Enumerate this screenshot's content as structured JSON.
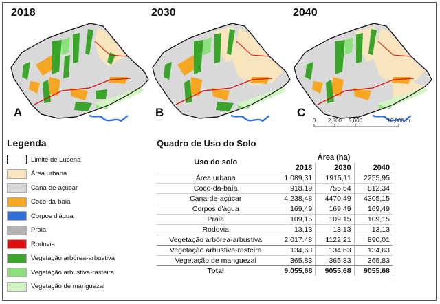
{
  "maps": [
    {
      "year": "2018",
      "letter": "A"
    },
    {
      "year": "2030",
      "letter": "B"
    },
    {
      "year": "2040",
      "letter": "C"
    }
  ],
  "scale_bar": {
    "ticks": [
      "0",
      "2,500",
      "5,000",
      "10,000 m"
    ]
  },
  "legend": {
    "title": "Legenda",
    "items": [
      {
        "label": "Limite de Lucena",
        "color": "#ffffff"
      },
      {
        "label": "Área urbana",
        "color": "#f8e5bd"
      },
      {
        "label": "Cana-de-açúcar",
        "color": "#d9d9d9"
      },
      {
        "label": "Coco-da-baía",
        "color": "#f5a623"
      },
      {
        "label": "Corpos d'água",
        "color": "#2f6fd6"
      },
      {
        "label": "Praia",
        "color": "#b3b3b3"
      },
      {
        "label": "Rodovia",
        "color": "#e01010"
      },
      {
        "label": "Vegetação arbórea-arbustiva",
        "color": "#3aa52a"
      },
      {
        "label": "Vegetação arbustiva-rasteira",
        "color": "#8ee07e"
      },
      {
        "label": "Vegetação de manguezal",
        "color": "#d3f5c4"
      }
    ]
  },
  "table": {
    "title": "Quadro de Uso do Solo",
    "uso_header": "Uso do solo",
    "area_header": "Área (ha)",
    "years": [
      "2018",
      "2030",
      "2040"
    ],
    "rows": [
      {
        "name": "Área urbana",
        "v2018": "1.089,31",
        "v2030": "1915,11",
        "v2040": "2255,95"
      },
      {
        "name": "Coco-da-baía",
        "v2018": "918,19",
        "v2030": "755,64",
        "v2040": "812,34"
      },
      {
        "name": "Cana-de-açúcar",
        "v2018": "4.238,48",
        "v2030": "4470,49",
        "v2040": "4305,15"
      },
      {
        "name": "Corpos d'água",
        "v2018": "169,49",
        "v2030": "169,49",
        "v2040": "169,49"
      },
      {
        "name": "Praia",
        "v2018": "109,15",
        "v2030": "109,15",
        "v2040": "109,15"
      },
      {
        "name": "Rodovia",
        "v2018": "13,13",
        "v2030": "13,13",
        "v2040": "13,13"
      },
      {
        "name": "Vegetação arbórea-arbustiva",
        "v2018": "2.017.48",
        "v2030": "1122,21",
        "v2040": "890,01"
      },
      {
        "name": "Vegetação arbustiva-rasteira",
        "v2018": "134,63",
        "v2030": "134,63",
        "v2040": "134,63"
      },
      {
        "name": "Vegetação de manguezal",
        "v2018": "365,83",
        "v2030": "365,83",
        "v2040": "365,83"
      }
    ],
    "total": {
      "name": "Total",
      "v2018": "9.055,68",
      "v2030": "9055.68",
      "v2040": "9055.68"
    }
  }
}
